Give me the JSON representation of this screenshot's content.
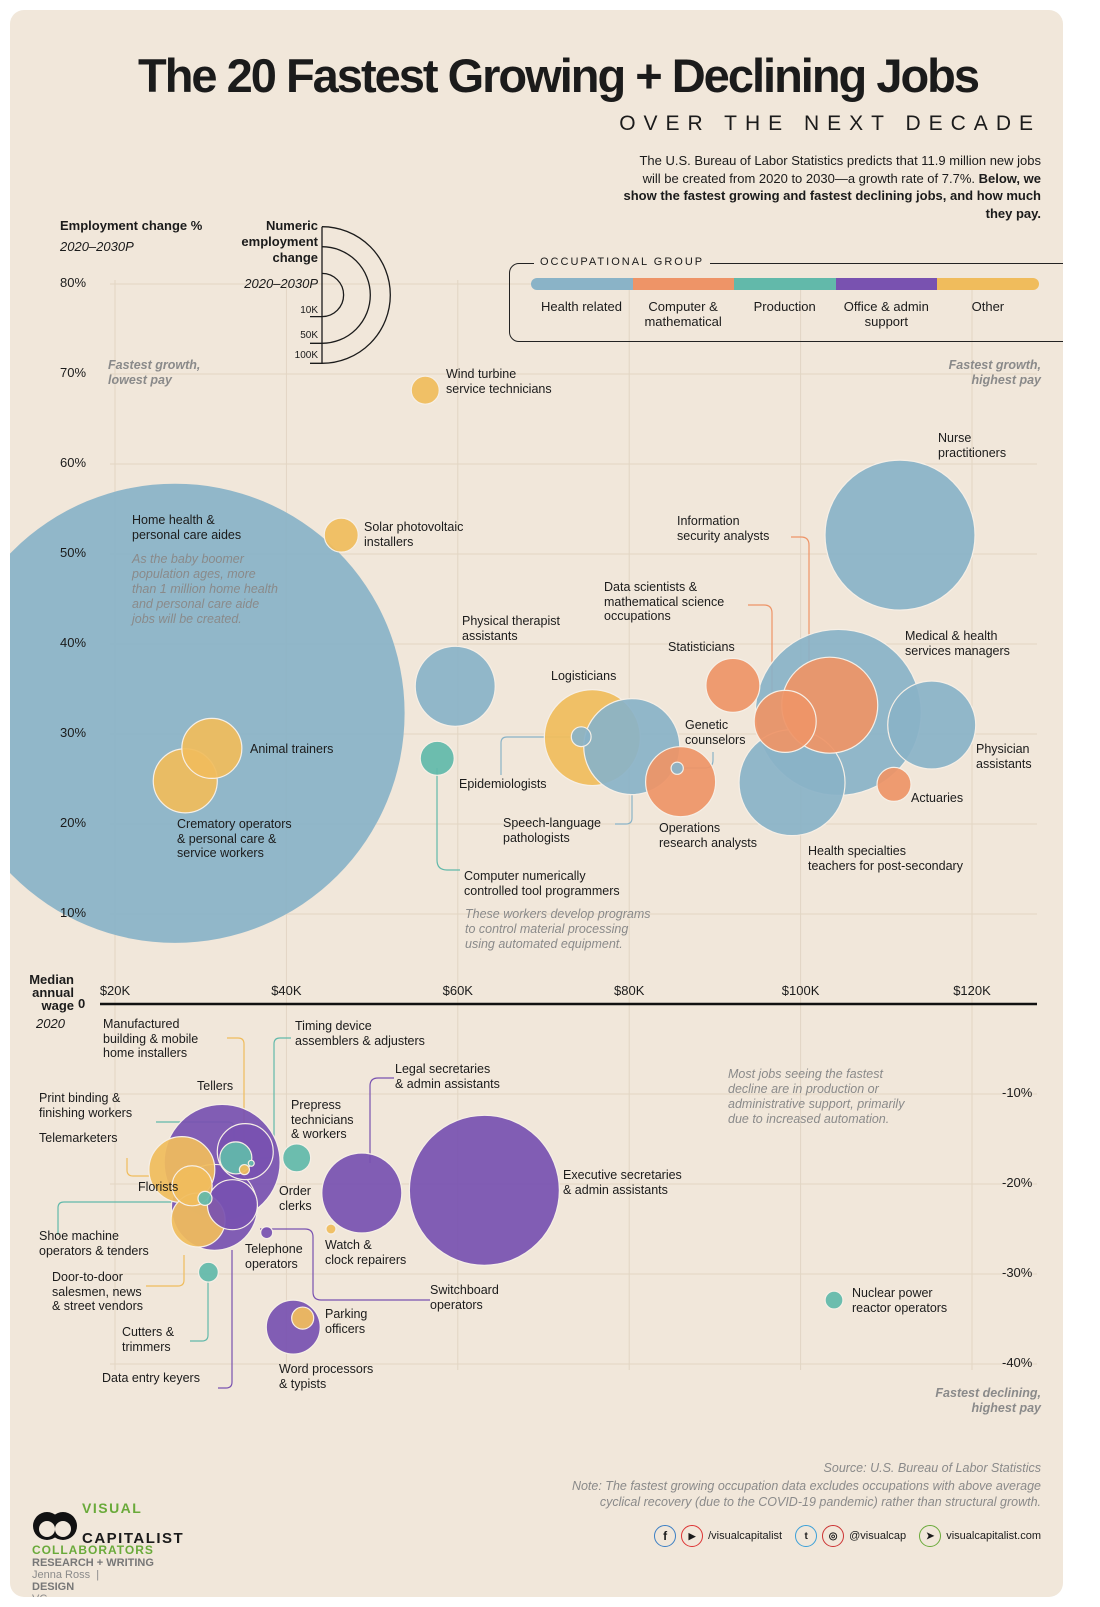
{
  "header": {
    "title": "The 20 Fastest Growing + Declining Jobs",
    "subtitle": "OVER THE NEXT DECADE",
    "intro_plain": "The U.S. Bureau of Labor Statistics predicts that 11.9 million new jobs will be created from 2020 to 2030—a growth rate of 7.7%. ",
    "intro_bold": "Below, we show the fastest growing and fastest declining jobs, and how much they pay."
  },
  "size_legend": {
    "title": "Numeric\nemployment\nchange",
    "period": "2020–2030P",
    "levels": [
      {
        "label": "10K",
        "value": 10000
      },
      {
        "label": "50K",
        "value": 50000
      },
      {
        "label": "100K",
        "value": 100000
      }
    ]
  },
  "group_legend": {
    "title": "OCCUPATIONAL GROUP",
    "groups": [
      {
        "key": "health",
        "label": "Health related",
        "color": "#8ab3c7"
      },
      {
        "key": "computer",
        "label": "Computer &\nmathematical",
        "color": "#ee9467"
      },
      {
        "key": "production",
        "label": "Production",
        "color": "#62b9aa"
      },
      {
        "key": "office",
        "label": "Office & admin\nsupport",
        "color": "#7952b0"
      },
      {
        "key": "other",
        "label": "Other",
        "color": "#f0bc5c"
      }
    ]
  },
  "chart_data": {
    "type": "scatter",
    "subtype": "bubble",
    "ylabel": "Employment change %",
    "ylabel_period": "2020–2030P",
    "xlabel": "Median\nannual\nwage",
    "xlabel_period": "2020",
    "zero_label": "0",
    "x_ticks": [
      {
        "v": 20,
        "label": "$20K"
      },
      {
        "v": 40,
        "label": "$40K"
      },
      {
        "v": 60,
        "label": "$60K"
      },
      {
        "v": 80,
        "label": "$80K"
      },
      {
        "v": 100,
        "label": "$100K"
      },
      {
        "v": 120,
        "label": "$120K"
      }
    ],
    "y_ticks_up": [
      {
        "v": 80,
        "label": "80%"
      },
      {
        "v": 70,
        "label": "70%"
      },
      {
        "v": 60,
        "label": "60%"
      },
      {
        "v": 50,
        "label": "50%"
      },
      {
        "v": 40,
        "label": "40%"
      },
      {
        "v": 30,
        "label": "30%"
      },
      {
        "v": 20,
        "label": "20%"
      },
      {
        "v": 10,
        "label": "10%"
      }
    ],
    "y_ticks_down": [
      {
        "v": -10,
        "label": "-10%"
      },
      {
        "v": -20,
        "label": "-20%"
      },
      {
        "v": -30,
        "label": "-30%"
      },
      {
        "v": -40,
        "label": "-40%"
      }
    ],
    "xlim": [
      20,
      130
    ],
    "ylim": [
      -42,
      82
    ],
    "grid": true,
    "points": [
      {
        "label": "Home health &\npersonal care aides",
        "group": "health",
        "wage_k": 27.0,
        "change_pct": 32.3,
        "change_n": 1130000
      },
      {
        "label": "Wind turbine\nservice technicians",
        "group": "other",
        "wage_k": 56.2,
        "change_pct": 68.2,
        "change_n": 4200
      },
      {
        "label": "Solar photovoltaic\ninstallers",
        "group": "other",
        "wage_k": 46.4,
        "change_pct": 52.1,
        "change_n": 6200
      },
      {
        "label": "Physical therapist\nassistants",
        "group": "health",
        "wage_k": 59.7,
        "change_pct": 35.3,
        "change_n": 34300
      },
      {
        "label": "Computer numerically\ncontrolled tool programmers",
        "group": "production",
        "wage_k": 57.6,
        "change_pct": 27.3,
        "change_n": 6200
      },
      {
        "label": "Animal trainers",
        "group": "other",
        "wage_k": 31.3,
        "change_pct": 28.4,
        "change_n": 19300
      },
      {
        "label": "Crematory operators\n& personal care &\nservice workers",
        "group": "other",
        "wage_k": 28.2,
        "change_pct": 24.8,
        "change_n": 22000
      },
      {
        "label": "Logisticians",
        "group": "other",
        "wage_k": 75.7,
        "change_pct": 29.6,
        "change_n": 49400
      },
      {
        "label": "Epidemiologists",
        "group": "health",
        "wage_k": 74.4,
        "change_pct": 29.7,
        "change_n": 2100
      },
      {
        "label": "Speech-language\npathologists",
        "group": "health",
        "wage_k": 80.3,
        "change_pct": 28.6,
        "change_n": 49400
      },
      {
        "label": "Genetic\ncounselors",
        "group": "health",
        "wage_k": 85.6,
        "change_pct": 26.2,
        "change_n": 800
      },
      {
        "label": "Operations\nresearch analysts",
        "group": "computer",
        "wage_k": 86.0,
        "change_pct": 24.7,
        "change_n": 26300
      },
      {
        "label": "Statisticians",
        "group": "computer",
        "wage_k": 92.1,
        "change_pct": 35.4,
        "change_n": 15600
      },
      {
        "label": "Data scientists &\nmathematical science\noccupations",
        "group": "computer",
        "wage_k": 98.2,
        "change_pct": 31.4,
        "change_n": 20600
      },
      {
        "label": "Information\nsecurity analysts",
        "group": "computer",
        "wage_k": 103.4,
        "change_pct": 33.2,
        "change_n": 49400
      },
      {
        "label": "Medical & health\nservices managers",
        "group": "health",
        "wage_k": 104.4,
        "change_pct": 32.4,
        "change_n": 147600
      },
      {
        "label": "Health specialties\nteachers for post-secondary",
        "group": "health",
        "wage_k": 99.0,
        "change_pct": 24.6,
        "change_n": 60200
      },
      {
        "label": "Physician\nassistants",
        "group": "health",
        "wage_k": 115.3,
        "change_pct": 31.0,
        "change_n": 41500
      },
      {
        "label": "Actuaries",
        "group": "computer",
        "wage_k": 110.9,
        "change_pct": 24.4,
        "change_n": 6200
      },
      {
        "label": "Nurse\npractitioners",
        "group": "health",
        "wage_k": 111.6,
        "change_pct": 52.1,
        "change_n": 120600
      },
      {
        "label": "Executive secretaries\n& admin assistants",
        "group": "office",
        "wage_k": 63.1,
        "change_pct": -20.7,
        "change_n": 120600
      },
      {
        "label": "Legal secretaries\n& admin assistants",
        "group": "office",
        "wage_k": 48.8,
        "change_pct": -21.0,
        "change_n": 34300
      },
      {
        "label": "Watch &\nclock repairers",
        "group": "other",
        "wage_k": 45.2,
        "change_pct": -25.0,
        "change_n": 540
      },
      {
        "label": "Prepress\ntechnicians\n& workers",
        "group": "production",
        "wage_k": 41.2,
        "change_pct": -17.1,
        "change_n": 4200
      },
      {
        "label": "Tellers",
        "group": "office",
        "wage_k": 32.5,
        "change_pct": -17.6,
        "change_n": 72100
      },
      {
        "label": "Order\nclerks",
        "group": "office",
        "wage_k": 35.2,
        "change_pct": -16.4,
        "change_n": 16800
      },
      {
        "label": "Data entry keyers",
        "group": "office",
        "wage_k": 31.6,
        "change_pct": -22.6,
        "change_n": 39600
      },
      {
        "label": "Switchboard\noperators",
        "group": "office",
        "wage_k": 33.7,
        "change_pct": -22.3,
        "change_n": 13400
      },
      {
        "label": "Telephone\noperators",
        "group": "office",
        "wage_k": 37.7,
        "change_pct": -25.4,
        "change_n": 770
      },
      {
        "label": "Word processors\n& typists",
        "group": "office",
        "wage_k": 40.8,
        "change_pct": -35.9,
        "change_n": 15600
      },
      {
        "label": "Telemarketers",
        "group": "other",
        "wage_k": 27.8,
        "change_pct": -18.4,
        "change_n": 23300
      },
      {
        "label": "Florists",
        "group": "other",
        "wage_k": 29.0,
        "change_pct": -20.2,
        "change_n": 8600
      },
      {
        "label": "Door-to-door\nsalesmen, news\n& street vendors",
        "group": "other",
        "wage_k": 29.7,
        "change_pct": -24.0,
        "change_n": 15600
      },
      {
        "label": "Manufactured\nbuilding & mobile\nhome installers",
        "group": "other",
        "wage_k": 35.1,
        "change_pct": -18.4,
        "change_n": 540
      },
      {
        "label": "Parking\nofficers",
        "group": "other",
        "wage_k": 41.9,
        "change_pct": -34.9,
        "change_n": 2600
      },
      {
        "label": "Timing device\nassemblers & adjusters",
        "group": "production",
        "wage_k": 35.9,
        "change_pct": -17.7,
        "change_n": 190
      },
      {
        "label": "Print binding &\nfinishing workers",
        "group": "production",
        "wage_k": 34.1,
        "change_pct": -17.1,
        "change_n": 5500
      },
      {
        "label": "Shoe machine\noperators & tenders",
        "group": "production",
        "wage_k": 30.5,
        "change_pct": -21.6,
        "change_n": 1050
      },
      {
        "label": "Cutters &\ntrimmers",
        "group": "production",
        "wage_k": 30.9,
        "change_pct": -29.8,
        "change_n": 2100
      },
      {
        "label": "Nuclear power\nreactor operators",
        "group": "production",
        "wage_k": 103.9,
        "change_pct": -32.9,
        "change_n": 1700
      }
    ],
    "annotations": {
      "home_health": "As the baby boomer\npopulation ages, more\nthan 1 million home health\nand personal care aide\njobs will be created.",
      "cnc": "These workers develop programs\nto control material processing\nusing automated equipment.",
      "decline": "Most jobs seeing the fastest\ndecline are in production or\nadministrative support, primarily\ndue to increased automation.",
      "top_left": "Fastest growth,\nlowest pay",
      "top_right": "Fastest growth,\nhighest pay",
      "bottom_right": "Fastest declining,\nhighest pay"
    }
  },
  "footer": {
    "source": "Source: U.S. Bureau of Labor Statistics",
    "note": "Note: The fastest growing occupation data excludes occupations with above average\ncyclical recovery (due to the COVID-19 pandemic) rather than structural growth.",
    "brand_top": "VISUAL",
    "brand_bottom": "CAPITALIST",
    "collaborators": "COLLABORATORS",
    "research_label": "RESEARCH + WRITING",
    "research_name": "Jenna Ross",
    "design_label": "DESIGN",
    "design_name": "VC",
    "social": [
      {
        "icon": "facebook-icon",
        "text": ""
      },
      {
        "icon": "youtube-icon",
        "text": "/visualcapitalist"
      },
      {
        "icon": "twitter-icon",
        "text": ""
      },
      {
        "icon": "instagram-icon",
        "text": "@visualcap"
      },
      {
        "icon": "cursor-icon",
        "text": "visualcapitalist.com"
      }
    ]
  }
}
